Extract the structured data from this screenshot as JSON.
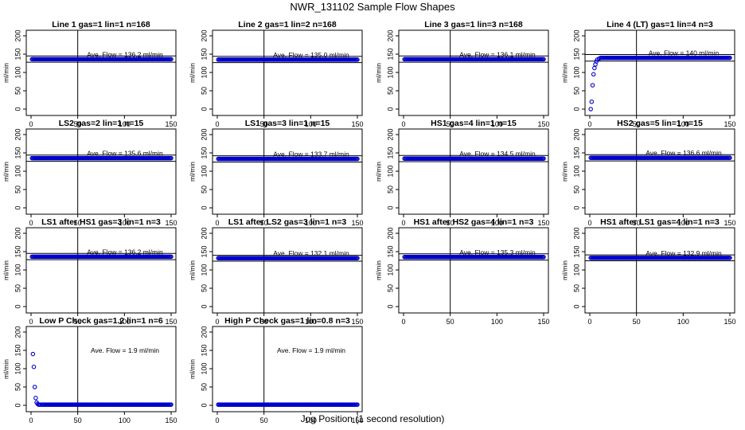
{
  "title": "NWR_131102  Sample Flow Shapes",
  "xlabel": "Jog Position (1 second resolution)",
  "colors": {
    "points": "#0000cc",
    "lines": "#000000"
  },
  "chart_data": [
    {
      "type": "scatter",
      "title": "Line 1 gas=1 lin=1 n=168",
      "ylabel": "ml/min",
      "xlim": [
        0,
        150
      ],
      "ylim": [
        0,
        200
      ],
      "xticks": [
        0,
        50,
        100,
        150
      ],
      "yticks": [
        0,
        50,
        100,
        150,
        200
      ],
      "annotation": "Ave. Flow = 136.2  ml/min",
      "vline": 50,
      "hlines": [
        145,
        128
      ],
      "series": [
        {
          "x": [
            1,
            150
          ],
          "y": [
            136.2,
            136.2
          ],
          "mode": "flat"
        }
      ]
    },
    {
      "type": "scatter",
      "title": "Line 2 gas=1 lin=2 n=168",
      "ylabel": "ml/min",
      "xlim": [
        0,
        150
      ],
      "ylim": [
        0,
        200
      ],
      "xticks": [
        0,
        50,
        100,
        150
      ],
      "yticks": [
        0,
        50,
        100,
        150,
        200
      ],
      "annotation": "Ave. Flow = 135.0  ml/min",
      "vline": 50,
      "hlines": [
        144,
        127
      ],
      "series": [
        {
          "x": [
            1,
            150
          ],
          "y": [
            135.0,
            135.0
          ],
          "mode": "flat"
        }
      ]
    },
    {
      "type": "scatter",
      "title": "Line 3 gas=1 lin=3 n=168",
      "ylabel": "ml/min",
      "xlim": [
        0,
        150
      ],
      "ylim": [
        0,
        200
      ],
      "xticks": [
        0,
        50,
        100,
        150
      ],
      "yticks": [
        0,
        50,
        100,
        150,
        200
      ],
      "annotation": "Ave. Flow = 136.1  ml/min",
      "vline": 50,
      "hlines": [
        145,
        128
      ],
      "series": [
        {
          "x": [
            1,
            150
          ],
          "y": [
            136.1,
            136.1
          ],
          "mode": "flat"
        }
      ]
    },
    {
      "type": "scatter",
      "title": "Line 4 (LT) gas=1 lin=4 n=3",
      "ylabel": "ml/min",
      "xlim": [
        0,
        150
      ],
      "ylim": [
        0,
        200
      ],
      "xticks": [
        0,
        50,
        100,
        150
      ],
      "yticks": [
        0,
        50,
        100,
        150,
        200
      ],
      "annotation": "Ave. Flow = 140  ml/min",
      "vline": 50,
      "hlines": [
        149,
        131
      ],
      "series": [
        {
          "x": [
            1,
            2,
            3,
            4,
            5,
            6,
            7,
            8,
            10,
            12,
            150
          ],
          "y": [
            0,
            20,
            65,
            95,
            112,
            122,
            130,
            135,
            138,
            140,
            140
          ],
          "mode": "ramp"
        }
      ]
    },
    {
      "type": "scatter",
      "title": "LS2 gas=2 lin=1 n=15",
      "ylabel": "ml/min",
      "xlim": [
        0,
        150
      ],
      "ylim": [
        0,
        200
      ],
      "xticks": [
        0,
        50,
        100,
        150
      ],
      "yticks": [
        0,
        50,
        100,
        150,
        200
      ],
      "annotation": "Ave. Flow = 135.6  ml/min",
      "vline": 50,
      "hlines": [
        144,
        127
      ],
      "series": [
        {
          "x": [
            1,
            150
          ],
          "y": [
            135.6,
            135.6
          ],
          "mode": "flat"
        }
      ]
    },
    {
      "type": "scatter",
      "title": "LS1 gas=3 lin=1 n=15",
      "ylabel": "ml/min",
      "xlim": [
        0,
        150
      ],
      "ylim": [
        0,
        200
      ],
      "xticks": [
        0,
        50,
        100,
        150
      ],
      "yticks": [
        0,
        50,
        100,
        150,
        200
      ],
      "annotation": "Ave. Flow = 133.7  ml/min",
      "vline": 50,
      "hlines": [
        142,
        125
      ],
      "series": [
        {
          "x": [
            1,
            150
          ],
          "y": [
            133.7,
            133.7
          ],
          "mode": "flat"
        }
      ]
    },
    {
      "type": "scatter",
      "title": "HS1 gas=4 lin=1 n=15",
      "ylabel": "ml/min",
      "xlim": [
        0,
        150
      ],
      "ylim": [
        0,
        200
      ],
      "xticks": [
        0,
        50,
        100,
        150
      ],
      "yticks": [
        0,
        50,
        100,
        150,
        200
      ],
      "annotation": "Ave. Flow = 134.5  ml/min",
      "vline": 50,
      "hlines": [
        143,
        126
      ],
      "series": [
        {
          "x": [
            1,
            150
          ],
          "y": [
            134.5,
            134.5
          ],
          "mode": "flat"
        }
      ]
    },
    {
      "type": "scatter",
      "title": "HS2 gas=5 lin=1 n=15",
      "ylabel": "ml/min",
      "xlim": [
        0,
        150
      ],
      "ylim": [
        0,
        200
      ],
      "xticks": [
        0,
        50,
        100,
        150
      ],
      "yticks": [
        0,
        50,
        100,
        150,
        200
      ],
      "annotation": "Ave. Flow = 136.6  ml/min",
      "vline": 50,
      "hlines": [
        145,
        128
      ],
      "series": [
        {
          "x": [
            1,
            150
          ],
          "y": [
            136.6,
            136.6
          ],
          "mode": "flat"
        }
      ]
    },
    {
      "type": "scatter",
      "title": "LS1 after HS1 gas=3 lin=1 n=3",
      "ylabel": "ml/min",
      "xlim": [
        0,
        150
      ],
      "ylim": [
        0,
        200
      ],
      "xticks": [
        0,
        50,
        100,
        150
      ],
      "yticks": [
        0,
        50,
        100,
        150,
        200
      ],
      "annotation": "Ave. Flow = 136.2  ml/min",
      "vline": 50,
      "hlines": [
        145,
        128
      ],
      "series": [
        {
          "x": [
            1,
            150
          ],
          "y": [
            136.2,
            136.2
          ],
          "mode": "flat"
        }
      ]
    },
    {
      "type": "scatter",
      "title": "LS1 after LS2 gas=3 lin=1 n=3",
      "ylabel": "ml/min",
      "xlim": [
        0,
        150
      ],
      "ylim": [
        0,
        200
      ],
      "xticks": [
        0,
        50,
        100,
        150
      ],
      "yticks": [
        0,
        50,
        100,
        150,
        200
      ],
      "annotation": "Ave. Flow = 132.1  ml/min",
      "vline": 50,
      "hlines": [
        140,
        124
      ],
      "series": [
        {
          "x": [
            1,
            150
          ],
          "y": [
            132.1,
            132.1
          ],
          "mode": "flat"
        }
      ]
    },
    {
      "type": "scatter",
      "title": "HS1 after HS2 gas=4 lin=1 n=3",
      "ylabel": "ml/min",
      "xlim": [
        0,
        150
      ],
      "ylim": [
        0,
        200
      ],
      "xticks": [
        0,
        50,
        100,
        150
      ],
      "yticks": [
        0,
        50,
        100,
        150,
        200
      ],
      "annotation": "Ave. Flow = 135.3  ml/min",
      "vline": 50,
      "hlines": [
        144,
        127
      ],
      "series": [
        {
          "x": [
            1,
            150
          ],
          "y": [
            135.3,
            135.3
          ],
          "mode": "flat"
        }
      ]
    },
    {
      "type": "scatter",
      "title": "HS1 after LS1 gas=4 lin=1 n=3",
      "ylabel": "ml/min",
      "xlim": [
        0,
        150
      ],
      "ylim": [
        0,
        200
      ],
      "xticks": [
        0,
        50,
        100,
        150
      ],
      "yticks": [
        0,
        50,
        100,
        150,
        200
      ],
      "annotation": "Ave. Flow = 132.9  ml/min",
      "vline": 50,
      "hlines": [
        141,
        125
      ],
      "series": [
        {
          "x": [
            1,
            150
          ],
          "y": [
            132.9,
            132.9
          ],
          "mode": "flat"
        }
      ]
    },
    {
      "type": "scatter",
      "title": "Low P Check gas=1.2 lin=1 n=6",
      "ylabel": "ml/min",
      "xlim": [
        0,
        150
      ],
      "ylim": [
        0,
        200
      ],
      "xticks": [
        0,
        50,
        100,
        150
      ],
      "yticks": [
        0,
        50,
        100,
        150,
        200
      ],
      "annotation": "Ave. Flow =  1.9  ml/min",
      "vline": 50,
      "hlines": [],
      "series": [
        {
          "x": [
            2,
            3,
            4,
            5,
            6,
            7,
            8,
            9,
            10,
            12,
            150
          ],
          "y": [
            140,
            105,
            50,
            20,
            8,
            4,
            2,
            1.9,
            1.9,
            1.9,
            1.9
          ],
          "mode": "decay"
        }
      ]
    },
    {
      "type": "scatter",
      "title": "High P Check gas=1 lin=0.8 n=3",
      "ylabel": "ml/min",
      "xlim": [
        0,
        150
      ],
      "ylim": [
        0,
        200
      ],
      "xticks": [
        0,
        50,
        100,
        150
      ],
      "yticks": [
        0,
        50,
        100,
        150,
        200
      ],
      "annotation": "Ave. Flow =  1.9  ml/min",
      "vline": 50,
      "hlines": [],
      "series": [
        {
          "x": [
            1,
            150
          ],
          "y": [
            1.9,
            1.9
          ],
          "mode": "flat"
        }
      ]
    }
  ]
}
